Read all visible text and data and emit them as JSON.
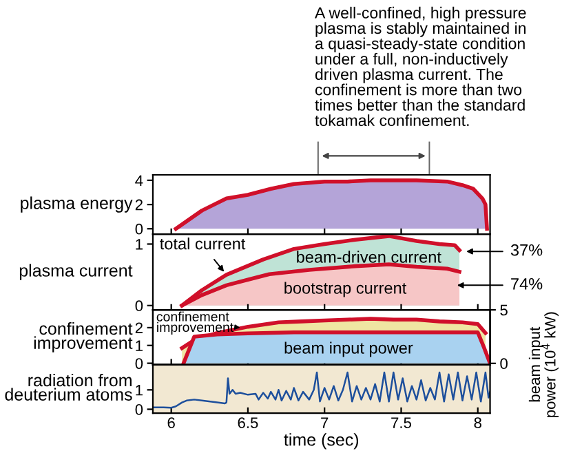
{
  "chart_data": [
    {
      "type": "area",
      "ylabel": "plasma energy",
      "xlim": [
        5.88,
        8.08
      ],
      "xticks": [
        6,
        6.5,
        7,
        7.5,
        8
      ],
      "ylim": [
        -0.45,
        4.45
      ],
      "yticks": [
        0,
        2,
        4
      ],
      "tick_labels": "y",
      "grid": false,
      "legend": false,
      "annotations": [
        "A well-confined, high pressure\nplasma is stably maintained in\na quasi-steady-state condition\nunder a full, non-inductively\ndriven plasma current. The\nconfinement is more than two\ntimes better than the standard\ntokamak confinement."
      ],
      "series": [
        {
          "color": "#b4a4d8",
          "x": [
            6.03,
            6.2,
            6.36,
            6.5,
            6.65,
            6.8,
            7.0,
            7.15,
            7.3,
            7.45,
            7.6,
            7.8,
            7.9,
            7.97,
            8.03,
            8.05,
            8.06
          ],
          "values": [
            0,
            1.5,
            2.5,
            2.8,
            3.3,
            3.7,
            3.9,
            3.9,
            4.0,
            4.0,
            4.0,
            3.9,
            3.6,
            3.3,
            2.5,
            2.0,
            0
          ]
        }
      ]
    },
    {
      "type": "area",
      "ylabel": "plasma current",
      "xlim": [
        5.88,
        8.08
      ],
      "xticks": [
        6,
        6.5,
        7,
        7.5,
        8
      ],
      "ylim": [
        -0.07,
        1.16
      ],
      "yticks": [
        0,
        1
      ],
      "tick_labels": "y",
      "grid": false,
      "legend": false,
      "annotations": [
        {
          "text": "total current",
          "x": 6.36,
          "y": 0.5
        },
        "beam-driven current",
        "bootstrap current",
        {
          "text": "37%",
          "x": 7.9,
          "y": 0.88
        },
        {
          "text": "74%",
          "x": 7.84,
          "y": 0.33
        }
      ],
      "series": [
        {
          "color": "#bfe3d6",
          "x": [
            6.07,
            6.2,
            6.36,
            6.6,
            6.8,
            7.0,
            7.2,
            7.42,
            7.6,
            7.75,
            7.85,
            7.88
          ],
          "values": [
            0,
            0.25,
            0.5,
            0.75,
            0.92,
            1.0,
            1.07,
            1.13,
            1.05,
            1.0,
            0.98,
            0.9
          ]
        },
        {
          "color": "#f6c6c6",
          "x": [
            6.07,
            6.2,
            6.36,
            6.5,
            6.64,
            6.9,
            7.2,
            7.42,
            7.6,
            7.8,
            7.88
          ],
          "values": [
            0,
            0.17,
            0.33,
            0.42,
            0.51,
            0.58,
            0.64,
            0.67,
            0.63,
            0.6,
            0.55
          ]
        }
      ]
    },
    {
      "type": "area",
      "ylabel": "confinement\nimprovement",
      "y2label": "beam input\npower (10$^{4}$ kW)",
      "xlim": [
        5.88,
        8.08
      ],
      "xticks": [
        6,
        6.5,
        7,
        7.5,
        8
      ],
      "ylim": [
        -0.08,
        3.0
      ],
      "yticks": [
        0,
        1,
        2
      ],
      "y2lim": [
        -0.12,
        5.0
      ],
      "y2ticks": [
        0,
        5
      ],
      "tick_labels": "y",
      "grid": false,
      "legend": false,
      "annotations": [
        {
          "text": "confinement\nimprovement",
          "x": 6.45,
          "y": 2.0
        },
        "beam input power"
      ],
      "series": [
        {
          "color": "#efe6a2",
          "x": [
            6.07,
            6.15,
            6.3,
            6.5,
            6.7,
            6.85,
            7.0,
            7.15,
            7.3,
            7.45,
            7.6,
            7.75,
            7.9,
            8.0,
            8.05
          ],
          "values": [
            0.85,
            1.3,
            1.7,
            2.05,
            2.3,
            2.35,
            2.4,
            2.45,
            2.5,
            2.45,
            2.45,
            2.35,
            2.3,
            2.2,
            1.7
          ]
        },
        {
          "color": "#a9d2f0",
          "axis": "y2",
          "x": [
            6.08,
            6.15,
            6.3,
            6.5,
            6.8,
            7.1,
            7.4,
            7.7,
            8.0,
            8.04,
            8.08
          ],
          "values": [
            0,
            2.5,
            2.7,
            2.8,
            2.9,
            2.9,
            2.9,
            2.9,
            2.9,
            1.5,
            0
          ]
        }
      ]
    },
    {
      "type": "line",
      "ylabel": "radiation from\ndeuterium atoms",
      "xlabel": "time (sec)",
      "xlim": [
        5.88,
        8.08
      ],
      "xticks": [
        6,
        6.5,
        7,
        7.5,
        8
      ],
      "ylim": [
        -0.2,
        2.3
      ],
      "yticks": [
        0,
        1
      ],
      "grid": false,
      "legend": false,
      "series": [
        {
          "color": "#1d4f9c",
          "x": [
            5.88,
            5.95,
            6.0,
            6.03,
            6.07,
            6.1,
            6.15,
            6.2,
            6.3,
            6.35,
            6.36,
            6.37,
            6.38,
            6.4,
            6.42,
            6.45,
            6.5,
            6.55,
            6.57,
            6.6,
            6.63,
            6.65,
            6.68,
            6.7,
            6.72,
            6.75,
            6.78,
            6.8,
            6.83,
            6.86,
            6.9,
            6.93,
            6.95,
            6.97,
            7.0,
            7.03,
            7.06,
            7.09,
            7.12,
            7.15,
            7.18,
            7.21,
            7.24,
            7.27,
            7.3,
            7.33,
            7.36,
            7.39,
            7.42,
            7.45,
            7.48,
            7.51,
            7.54,
            7.57,
            7.6,
            7.63,
            7.66,
            7.69,
            7.72,
            7.75,
            7.78,
            7.81,
            7.84,
            7.87,
            7.9,
            7.93,
            7.96,
            7.99,
            8.02,
            8.05,
            8.07,
            8.08
          ],
          "values": [
            0.1,
            0.1,
            0.08,
            0.15,
            0.35,
            0.45,
            0.5,
            0.45,
            0.35,
            0.3,
            0.35,
            1.6,
            0.8,
            1.0,
            0.8,
            0.85,
            0.75,
            0.8,
            0.5,
            0.85,
            0.55,
            0.9,
            0.5,
            1.0,
            0.45,
            0.95,
            0.5,
            1.1,
            0.45,
            0.9,
            0.5,
            1.0,
            1.9,
            0.4,
            1.1,
            0.5,
            1.2,
            0.45,
            1.0,
            1.9,
            0.4,
            1.2,
            0.5,
            1.1,
            0.5,
            1.3,
            0.4,
            1.9,
            0.4,
            1.9,
            0.5,
            1.6,
            0.4,
            1.2,
            0.5,
            1.5,
            0.45,
            1.1,
            0.5,
            1.9,
            0.4,
            1.8,
            0.5,
            1.9,
            0.45,
            1.7,
            0.5,
            1.9,
            0.4,
            1.9,
            0.6,
            0.9
          ]
        }
      ]
    }
  ]
}
